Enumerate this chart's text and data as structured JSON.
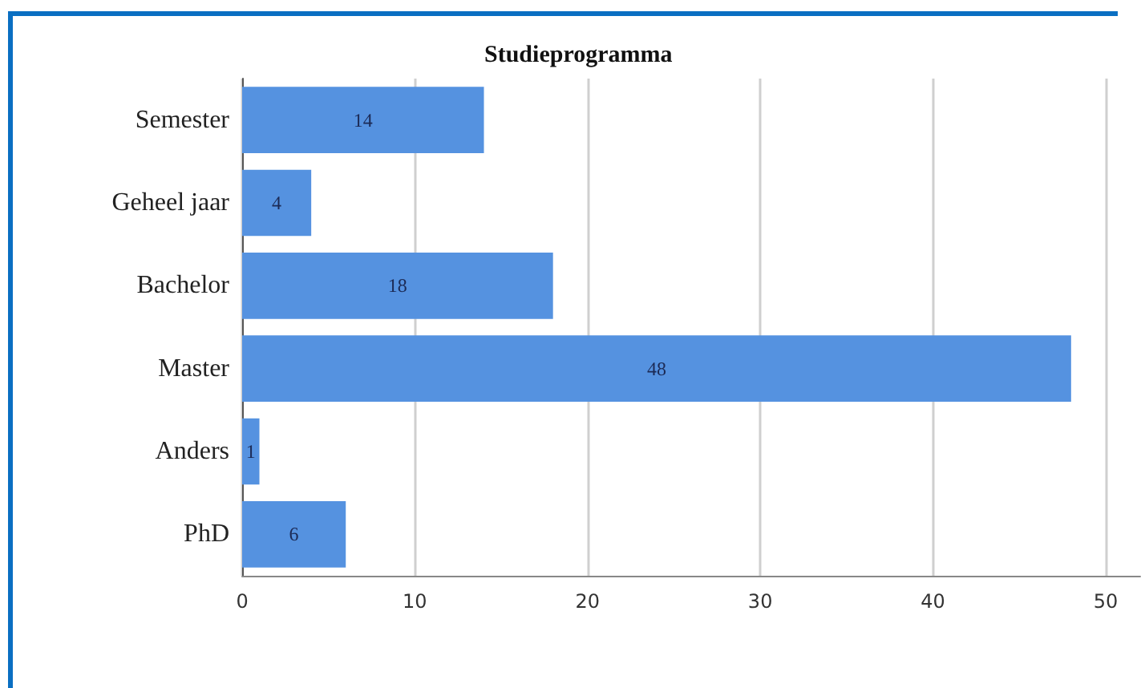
{
  "chart_data": {
    "type": "bar",
    "orientation": "horizontal",
    "title": "Studieprogramma",
    "categories": [
      "Semester",
      "Geheel jaar",
      "Bachelor",
      "Master",
      "Anders",
      "PhD"
    ],
    "values": [
      14,
      4,
      18,
      48,
      1,
      6
    ],
    "color": "#5592e0",
    "xlim": [
      0,
      52
    ],
    "xticks": [
      0,
      10,
      20,
      30,
      40,
      50
    ],
    "grid": "x",
    "data_labels": true
  }
}
